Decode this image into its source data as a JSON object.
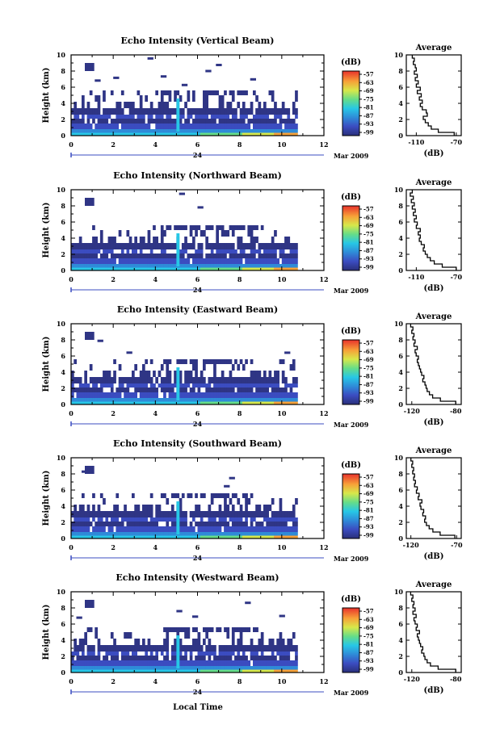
{
  "page": {
    "date_label": "Mar 2009",
    "day_label": "24",
    "x_axis_label": "Local Time"
  },
  "chart_data": [
    {
      "type": "heatmap",
      "title": "Echo Intensity (Vertical Beam)",
      "ylabel": "Height (km)",
      "xlim": [
        0,
        12
      ],
      "ylim": [
        0,
        10
      ],
      "x_ticks": [
        "0",
        "2",
        "4",
        "6",
        "8",
        "10",
        "12"
      ],
      "y_ticks": [
        "0",
        "2",
        "4",
        "6",
        "8",
        "10"
      ],
      "data_end_hour": 10.7,
      "colorbar": {
        "label": "(dB)",
        "ticks": [
          "-57",
          "-63",
          "-69",
          "-75",
          "-81",
          "-87",
          "-93",
          "-99"
        ]
      },
      "profile": {
        "title": "Average",
        "xlabel": "(dB)",
        "xlim": [
          -120,
          -65
        ],
        "x_ticks": [
          "-110",
          "-70"
        ],
        "ylim": [
          0,
          10
        ],
        "heights": [
          0.2,
          0.6,
          1.0,
          1.4,
          1.8,
          2.2,
          2.6,
          3.0,
          3.4,
          3.8,
          4.2,
          4.6,
          5.0,
          5.4,
          5.8,
          6.2,
          6.6,
          7.0,
          7.4,
          7.8,
          8.2,
          8.6,
          9.0,
          9.4,
          9.8
        ],
        "values": [
          -72,
          -88,
          -95,
          -98,
          -101,
          -103,
          -99,
          -100,
          -104,
          -106,
          -104,
          -107,
          -105,
          -109,
          -106,
          -110,
          -108,
          -111,
          -109,
          -112,
          -110,
          -111,
          -113,
          -112,
          -114
        ]
      }
    },
    {
      "type": "heatmap",
      "title": "Echo Intensity (Northward Beam)",
      "ylabel": "Height (km)",
      "xlim": [
        0,
        12
      ],
      "ylim": [
        0,
        10
      ],
      "x_ticks": [
        "0",
        "2",
        "4",
        "6",
        "8",
        "10",
        "12"
      ],
      "y_ticks": [
        "0",
        "2",
        "4",
        "6",
        "8",
        "10"
      ],
      "data_end_hour": 10.7,
      "colorbar": {
        "label": "(dB)",
        "ticks": [
          "-57",
          "-63",
          "-69",
          "-75",
          "-81",
          "-87",
          "-93",
          "-99"
        ]
      },
      "profile": {
        "title": "Average",
        "xlabel": "(dB)",
        "xlim": [
          -120,
          -65
        ],
        "x_ticks": [
          "-110",
          "-70"
        ],
        "ylim": [
          0,
          10
        ],
        "heights": [
          0.2,
          0.6,
          1.0,
          1.4,
          1.8,
          2.2,
          2.6,
          3.0,
          3.4,
          3.8,
          4.2,
          4.6,
          5.0,
          5.4,
          5.8,
          6.2,
          6.6,
          7.0,
          7.4,
          7.8,
          8.2,
          8.6,
          9.0,
          9.4,
          9.8
        ],
        "values": [
          -70,
          -84,
          -92,
          -96,
          -99,
          -101,
          -103,
          -102,
          -105,
          -107,
          -106,
          -108,
          -106,
          -110,
          -109,
          -112,
          -110,
          -113,
          -111,
          -114,
          -112,
          -115,
          -113,
          -116,
          -114
        ]
      }
    },
    {
      "type": "heatmap",
      "title": "Echo Intensity (Eastward Beam)",
      "ylabel": "Height (km)",
      "xlim": [
        0,
        12
      ],
      "ylim": [
        0,
        10
      ],
      "x_ticks": [
        "0",
        "2",
        "4",
        "6",
        "8",
        "10",
        "12"
      ],
      "y_ticks": [
        "0",
        "2",
        "4",
        "6",
        "8",
        "10"
      ],
      "data_end_hour": 10.7,
      "colorbar": {
        "label": "(dB)",
        "ticks": [
          "-57",
          "-63",
          "-69",
          "-75",
          "-81",
          "-87",
          "-93",
          "-99"
        ]
      },
      "profile": {
        "title": "Average",
        "xlabel": "(dB)",
        "xlim": [
          -125,
          -75
        ],
        "x_ticks": [
          "-120",
          "-80"
        ],
        "ylim": [
          0,
          10
        ],
        "heights": [
          0.2,
          0.6,
          1.0,
          1.4,
          1.8,
          2.2,
          2.6,
          3.0,
          3.4,
          3.8,
          4.2,
          4.6,
          5.0,
          5.4,
          5.8,
          6.2,
          6.6,
          7.0,
          7.4,
          7.8,
          8.2,
          8.6,
          9.0,
          9.4,
          9.8
        ],
        "values": [
          -80,
          -94,
          -101,
          -104,
          -106,
          -107,
          -108,
          -110,
          -109,
          -111,
          -112,
          -113,
          -114,
          -115,
          -114,
          -116,
          -117,
          -115,
          -118,
          -117,
          -119,
          -118,
          -120,
          -119,
          -121
        ]
      }
    },
    {
      "type": "heatmap",
      "title": "Echo Intensity (Southward Beam)",
      "ylabel": "Height (km)",
      "xlim": [
        0,
        12
      ],
      "ylim": [
        0,
        10
      ],
      "x_ticks": [
        "0",
        "2",
        "4",
        "6",
        "8",
        "10",
        "12"
      ],
      "y_ticks": [
        "0",
        "2",
        "4",
        "6",
        "8",
        "10"
      ],
      "data_end_hour": 10.7,
      "colorbar": {
        "label": "(dB)",
        "ticks": [
          "-57",
          "-63",
          "-69",
          "-75",
          "-81",
          "-87",
          "-93",
          "-99"
        ]
      },
      "profile": {
        "title": "Average",
        "xlabel": "(dB)",
        "xlim": [
          -125,
          -65
        ],
        "x_ticks": [
          "-120",
          "-70"
        ],
        "ylim": [
          0,
          10
        ],
        "heights": [
          0.2,
          0.6,
          1.0,
          1.4,
          1.8,
          2.2,
          2.6,
          3.0,
          3.4,
          3.8,
          4.2,
          4.6,
          5.0,
          5.4,
          5.8,
          6.2,
          6.6,
          7.0,
          7.4,
          7.8,
          8.2,
          8.6,
          9.0,
          9.4,
          9.8
        ],
        "values": [
          -72,
          -88,
          -96,
          -100,
          -103,
          -105,
          -104,
          -107,
          -106,
          -109,
          -110,
          -108,
          -112,
          -111,
          -114,
          -113,
          -116,
          -115,
          -117,
          -116,
          -118,
          -117,
          -119,
          -118,
          -120
        ]
      }
    },
    {
      "type": "heatmap",
      "title": "Echo Intensity (Westward Beam)",
      "ylabel": "Height (km)",
      "xlim": [
        0,
        12
      ],
      "ylim": [
        0,
        10
      ],
      "x_ticks": [
        "0",
        "2",
        "4",
        "6",
        "8",
        "10",
        "12"
      ],
      "y_ticks": [
        "0",
        "2",
        "4",
        "6",
        "8",
        "10"
      ],
      "data_end_hour": 10.7,
      "colorbar": {
        "label": "(dB)",
        "ticks": [
          "-57",
          "-63",
          "-69",
          "-75",
          "-81",
          "-87",
          "-93",
          "-99"
        ]
      },
      "profile": {
        "title": "Average",
        "xlabel": "(dB)",
        "xlim": [
          -125,
          -75
        ],
        "x_ticks": [
          "-120",
          "-80"
        ],
        "ylim": [
          0,
          10
        ],
        "heights": [
          0.2,
          0.6,
          1.0,
          1.4,
          1.8,
          2.2,
          2.6,
          3.0,
          3.4,
          3.8,
          4.2,
          4.6,
          5.0,
          5.4,
          5.8,
          6.2,
          6.6,
          7.0,
          7.4,
          7.8,
          8.2,
          8.6,
          9.0,
          9.4,
          9.8
        ],
        "values": [
          -80,
          -96,
          -103,
          -106,
          -108,
          -109,
          -111,
          -110,
          -112,
          -113,
          -114,
          -115,
          -113,
          -116,
          -115,
          -117,
          -118,
          -116,
          -119,
          -117,
          -119,
          -118,
          -120,
          -119,
          -121
        ]
      }
    }
  ]
}
